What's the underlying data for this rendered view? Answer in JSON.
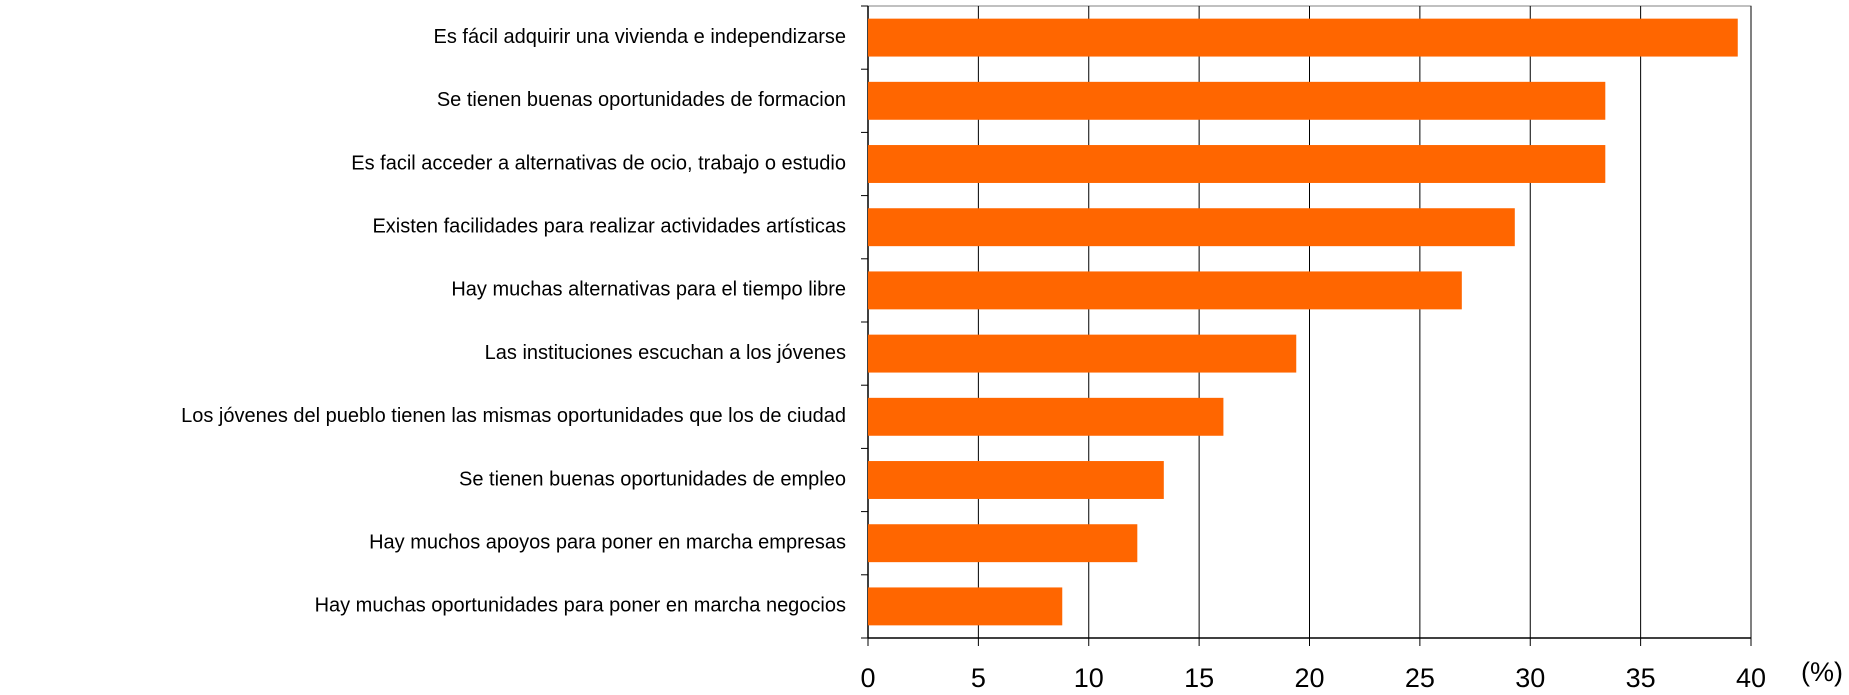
{
  "chart_data": {
    "type": "bar",
    "orientation": "horizontal",
    "categories": [
      "Es fácil adquirir una vivienda e independizarse",
      "Se tienen buenas oportunidades de formacion",
      "Es facil acceder a alternativas de ocio, trabajo o estudio",
      "Existen facilidades para realizar actividades artísticas",
      "Hay muchas alternativas para el tiempo libre",
      "Las instituciones escuchan a los jóvenes",
      "Los jóvenes del pueblo tienen las mismas oportunidades que los de ciudad",
      "Se tienen buenas oportunidades de empleo",
      "Hay muchos apoyos para poner en marcha empresas",
      "Hay muchas oportunidades para poner en marcha negocios"
    ],
    "values": [
      39.4,
      33.4,
      33.4,
      29.3,
      26.9,
      19.4,
      16.1,
      13.4,
      12.2,
      8.8
    ],
    "color": "#ff6600",
    "xlabel": "(%)",
    "xlim": [
      0,
      40
    ],
    "xticks": [
      0,
      5,
      10,
      15,
      20,
      25,
      30,
      35,
      40
    ],
    "grid": true
  }
}
